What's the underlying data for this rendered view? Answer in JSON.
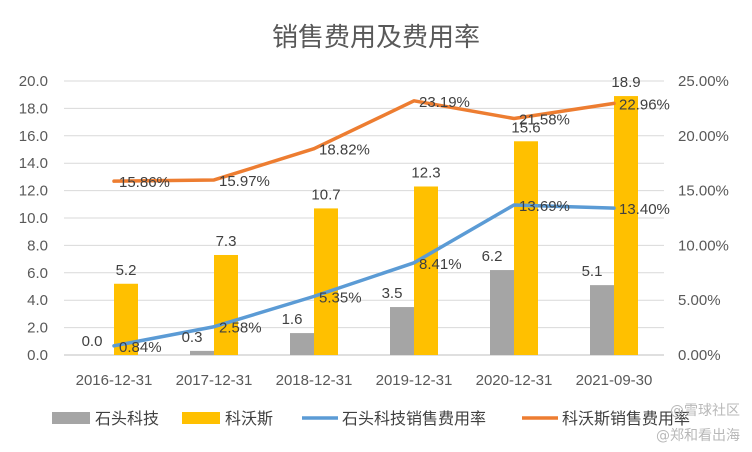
{
  "chart_data": {
    "type": "bar",
    "title": "销售费用及费用率",
    "categories": [
      "2016-12-31",
      "2017-12-31",
      "2018-12-31",
      "2019-12-31",
      "2020-12-31",
      "2021-09-30"
    ],
    "y_left": {
      "min": 0,
      "max": 20,
      "step": 2,
      "ticks": [
        "0.0",
        "2.0",
        "4.0",
        "6.0",
        "8.0",
        "10.0",
        "12.0",
        "14.0",
        "16.0",
        "18.0",
        "20.0"
      ]
    },
    "y_right": {
      "min": 0,
      "max": 25,
      "step": 5,
      "ticks": [
        "0.00%",
        "5.00%",
        "10.00%",
        "15.00%",
        "20.00%",
        "25.00%"
      ]
    },
    "grid": true,
    "legend_position": "bottom",
    "series": [
      {
        "name": "石头科技",
        "type": "bar",
        "axis": "left",
        "color": "#a5a5a5",
        "values": [
          0.0,
          0.3,
          1.6,
          3.5,
          6.2,
          5.1
        ],
        "labels": [
          "0.0",
          "0.3",
          "1.6",
          "3.5",
          "6.2",
          "5.1"
        ]
      },
      {
        "name": "科沃斯",
        "type": "bar",
        "axis": "left",
        "color": "#ffc000",
        "values": [
          5.2,
          7.3,
          10.7,
          12.3,
          15.6,
          18.9
        ],
        "labels": [
          "5.2",
          "7.3",
          "10.7",
          "12.3",
          "15.6",
          "18.9"
        ]
      },
      {
        "name": "石头科技销售费用率",
        "type": "line",
        "axis": "right",
        "color": "#5b9bd5",
        "values": [
          0.84,
          2.58,
          5.35,
          8.41,
          13.69,
          13.4
        ],
        "labels": [
          "0.84%",
          "2.58%",
          "5.35%",
          "8.41%",
          "13.69%",
          "13.40%"
        ]
      },
      {
        "name": "科沃斯销售费用率",
        "type": "line",
        "axis": "right",
        "color": "#ed7d31",
        "values": [
          15.86,
          15.97,
          18.82,
          23.19,
          21.58,
          22.96
        ],
        "labels": [
          "15.86%",
          "15.97%",
          "18.82%",
          "23.19%",
          "21.58%",
          "22.96%"
        ]
      }
    ]
  },
  "watermark": {
    "text1": "@雪球社区",
    "text2": "@郑和看出海"
  }
}
